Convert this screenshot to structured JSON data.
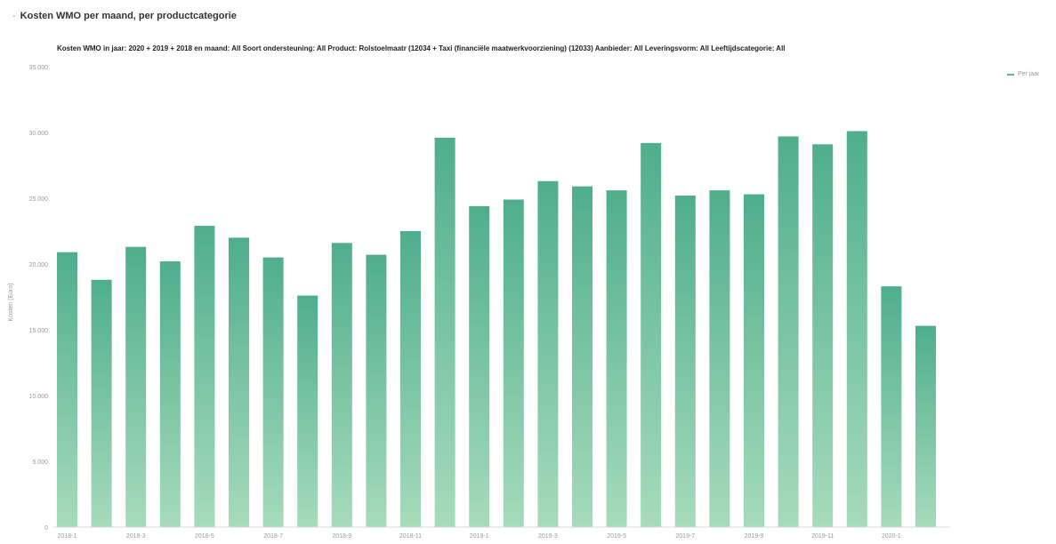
{
  "header": {
    "collapse_glyph": "-",
    "title": "Kosten WMO per maand, per productcategorie"
  },
  "filters": {
    "text": "Kosten WMO in jaar: 2020 + 2019 + 2018 en maand: All Soort ondersteuning: All Product: Rolstoelmaatr (12034 + Taxi (financiële maatwerkvoorziening) (12033) Aanbieder: All Leveringsvorm: All Leeftijdscategorie: All"
  },
  "legend": {
    "label": "Per jaar"
  },
  "chart_data": {
    "type": "bar",
    "title": "Kosten WMO per maand, per productcategorie",
    "ylabel": "Kosten (Euro)",
    "ylim": [
      0,
      35000
    ],
    "yticks": [
      0,
      5000,
      10000,
      15000,
      20000,
      25000,
      30000,
      35000
    ],
    "ytick_labels": [
      "0",
      "5.000",
      "10.000",
      "15.000",
      "20.000",
      "25.000",
      "30.000",
      "35.000"
    ],
    "grid": false,
    "legend_position": "top-right",
    "categories": [
      "2018-1",
      "2018-2",
      "2018-3",
      "2018-4",
      "2018-5",
      "2018-6",
      "2018-7",
      "2018-8",
      "2018-9",
      "2018-10",
      "2018-11",
      "2018-12",
      "2019-1",
      "2019-2",
      "2019-3",
      "2019-4",
      "2019-5",
      "2019-6",
      "2019-7",
      "2019-8",
      "2019-9",
      "2019-10",
      "2019-11",
      "2019-12",
      "2020-1",
      "2020-2"
    ],
    "x_tick_labels": [
      "2018-1",
      "2018-3",
      "2018-5",
      "2018-7",
      "2018-9",
      "2018-11",
      "2019-1",
      "2019-3",
      "2019-5",
      "2019-7",
      "2019-9",
      "2019-11",
      "2020-1"
    ],
    "values": [
      20900,
      18800,
      21300,
      20200,
      22900,
      22000,
      20500,
      17600,
      21600,
      20700,
      22500,
      29600,
      24400,
      24900,
      26300,
      25900,
      25600,
      29200,
      25200,
      25600,
      25300,
      29700,
      29100,
      30100,
      18300,
      15300
    ],
    "colors": {
      "bar": "#6dbf9c",
      "bar_top": "#4fae8c"
    }
  }
}
